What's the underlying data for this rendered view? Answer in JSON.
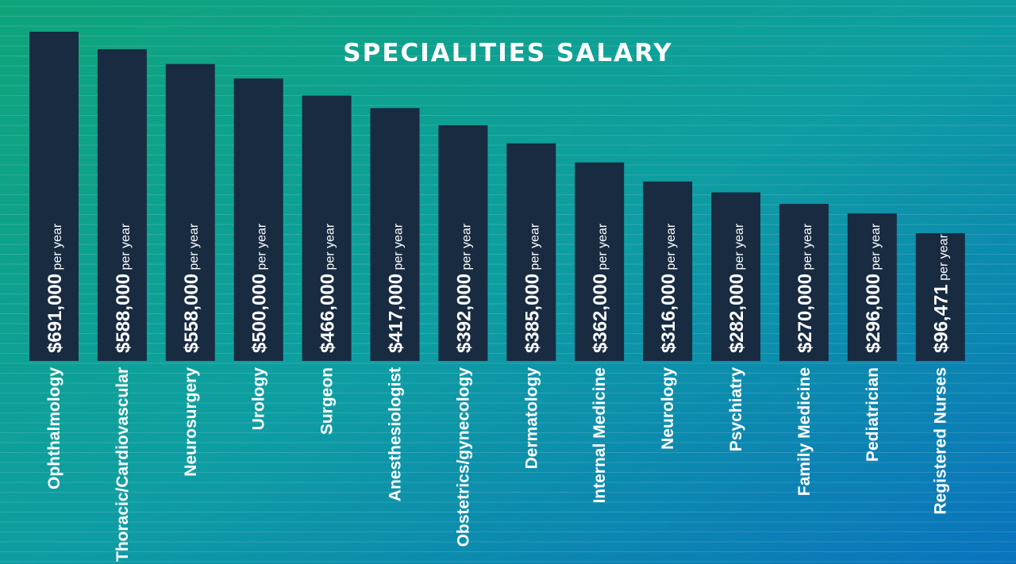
{
  "chart_data": {
    "type": "bar",
    "title": "SPECIALITIES SALARY",
    "xlabel": "",
    "ylabel": "",
    "grid": true,
    "unit_suffix": "per year",
    "categories": [
      "Ophthalmology",
      "Thoracic/Cardiovascular",
      "Neurosurgery",
      "Urology",
      "Surgeon",
      "Anesthesiologist",
      "Obstetrics/gynecology",
      "Dermatology",
      "Internal Medicine",
      "Neurology",
      "Psychiatry",
      "Family Medicine",
      "Pediatrician",
      "Registered Nurses"
    ],
    "value_labels": [
      "$691,000",
      "$588,000",
      "$558,000",
      "$500,000",
      "$466,000",
      "$417,000",
      "$392,000",
      "$385,000",
      "$362,000",
      "$316,000",
      "$282,000",
      "$270,000",
      "$296,000",
      "$96,471"
    ],
    "values": [
      691000,
      588000,
      558000,
      500000,
      466000,
      417000,
      392000,
      385000,
      362000,
      316000,
      282000,
      270000,
      296000,
      96471
    ],
    "bar_fill_levels": [
      1.0,
      0.947,
      0.902,
      0.858,
      0.806,
      0.768,
      0.716,
      0.661,
      0.603,
      0.545,
      0.512,
      0.477,
      0.448,
      0.388
    ]
  },
  "colors": {
    "background_start": "#0fa57a",
    "background_mid": "#0e9ea2",
    "background_end": "#0a73bd",
    "bar": "#182b41",
    "text": "#ffffff",
    "grid_line": "#ffffff"
  }
}
